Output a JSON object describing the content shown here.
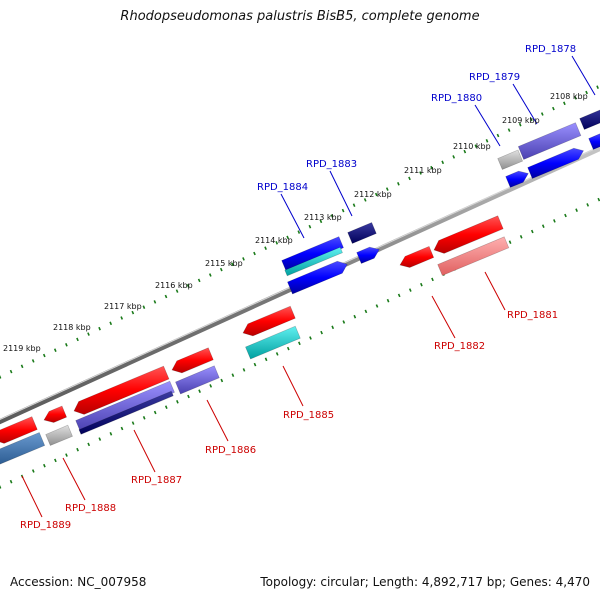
{
  "title": "Rhodopseudomonas palustris BisB5, complete genome",
  "footer": {
    "accession": "Accession: NC_007958",
    "summary": "Topology: circular; Length: 4,892,717 bp; Genes: 4,470"
  },
  "colors": {
    "backbone": "#8a8a8a",
    "forward_label": "#0000cc",
    "reverse_label": "#cc0000",
    "tick_ring": "#1a7a1a"
  },
  "scale_ticks": [
    "2108 kbp",
    "2109 kbp",
    "2110 kbp",
    "2111 kbp",
    "2112 kbp",
    "2113 kbp",
    "2114 kbp",
    "2115 kbp",
    "2116 kbp",
    "2117 kbp",
    "2118 kbp",
    "2119 kbp"
  ],
  "gene_labels": {
    "forward": [
      "RPD_1878",
      "RPD_1879",
      "RPD_1880",
      "RPD_1883",
      "RPD_1884"
    ],
    "reverse": [
      "RPD_1881",
      "RPD_1882",
      "RPD_1885",
      "RPD_1886",
      "RPD_1887",
      "RPD_1888",
      "RPD_1889"
    ]
  }
}
